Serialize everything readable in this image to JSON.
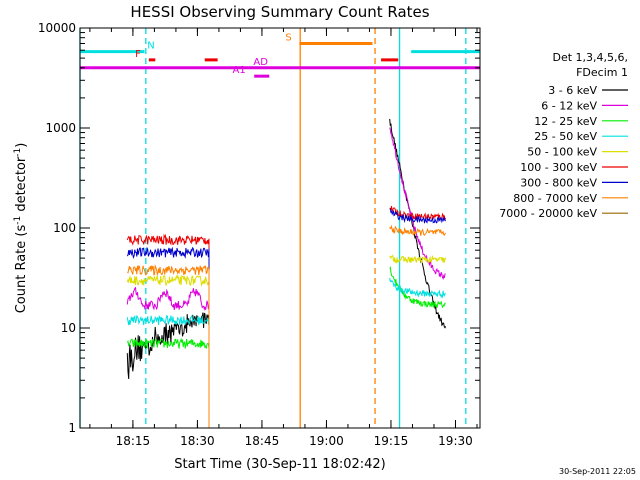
{
  "chart_data": {
    "type": "line",
    "title": "HESSI Observing Summary Count Rates",
    "xlabel": "Start Time (30-Sep-11 18:02:42)",
    "ylabel_main": "Count Rate (s",
    "ylabel_sup1": "-1",
    "ylabel_mid": " detector",
    "ylabel_sup2": "-1",
    "ylabel_end": ")",
    "yscale": "log",
    "ylim": [
      1,
      10000
    ],
    "xlim_minutes_after_start": [
      0,
      93
    ],
    "grid": false,
    "legend_position": "right",
    "x_ticks": [
      "18:15",
      "18:30",
      "18:45",
      "19:00",
      "19:15",
      "19:30"
    ],
    "x_tick_minutes": [
      12.3,
      27.3,
      42.3,
      57.3,
      72.3,
      87.3
    ],
    "y_ticks": [
      "1",
      "10",
      "100",
      "1000",
      "10000"
    ],
    "y_tick_values": [
      1,
      10,
      100,
      1000,
      10000
    ],
    "legend_header": [
      "Det 1,3,4,5,6,",
      "FDecim 1"
    ],
    "series": [
      {
        "name": "3 - 6 keV",
        "color": "#000000",
        "seg1": 9,
        "seg2": 7,
        "peak": 1200
      },
      {
        "name": "6 - 12 keV",
        "color": "#dd00dd",
        "seg1": 17,
        "seg2": 30,
        "peak": 1050
      },
      {
        "name": "12 - 25 keV",
        "color": "#00ee00",
        "seg1": 7,
        "seg2": 17,
        "peak": 40
      },
      {
        "name": "25 - 50 keV",
        "color": "#00e0e0",
        "seg1": 12,
        "seg2": 22,
        "peak": 30
      },
      {
        "name": "50 - 100 keV",
        "color": "#dddd00",
        "seg1": 30,
        "seg2": 48,
        "peak": 50
      },
      {
        "name": "100 - 300 keV",
        "color": "#ee0000",
        "seg1": 76,
        "seg2": 130,
        "peak": 160
      },
      {
        "name": "300 - 800 keV",
        "color": "#0000cc",
        "seg1": 57,
        "seg2": 120,
        "peak": 150
      },
      {
        "name": "800 - 7000 keV",
        "color": "#ff8000",
        "seg1": 38,
        "seg2": 90,
        "peak": 100
      },
      {
        "name": "7000 - 20000 keV",
        "color": "#996600",
        "seg1": 0,
        "seg2": 0,
        "peak": 0
      }
    ],
    "data_intervals_minutes": [
      [
        11,
        30
      ],
      [
        72,
        85
      ]
    ],
    "flags": [
      {
        "label": "N",
        "color": "#00e0e0",
        "y": 5800,
        "ranges": [
          [
            0,
            15
          ],
          [
            77,
            93
          ]
        ],
        "label_at": 16.5
      },
      {
        "label": "F",
        "color": "#ee0000",
        "y": 4800,
        "ranges": [
          [
            16,
            17.5
          ],
          [
            29,
            32
          ],
          [
            70,
            74
          ]
        ],
        "label_at": 13.5
      },
      {
        "label": "S",
        "color": "#ff8000",
        "y": 7000,
        "ranges": [
          [
            51,
            68
          ]
        ],
        "label_at": 48.5
      },
      {
        "label": "AD",
        "color": "#dd00dd",
        "y": 4000,
        "ranges": [
          [
            0,
            93
          ]
        ],
        "label_at": 42
      },
      {
        "label": "A1",
        "color": "#dd00dd",
        "y": 3300,
        "ranges": [
          [
            40.5,
            44
          ]
        ],
        "label_at": 37
      }
    ],
    "vlines": [
      {
        "x": 0,
        "color": "#00e0e0",
        "style": "solid"
      },
      {
        "x": 15.3,
        "color": "#00e0e0",
        "style": "dash"
      },
      {
        "x": 51.2,
        "color": "#ff8000",
        "style": "solid"
      },
      {
        "x": 68.6,
        "color": "#ff8000",
        "style": "dash"
      },
      {
        "x": 74.3,
        "color": "#00e0e0",
        "style": "solid"
      },
      {
        "x": 89.7,
        "color": "#00e0e0",
        "style": "dash"
      }
    ]
  },
  "footer_date": "30-Sep-2011 22:05"
}
